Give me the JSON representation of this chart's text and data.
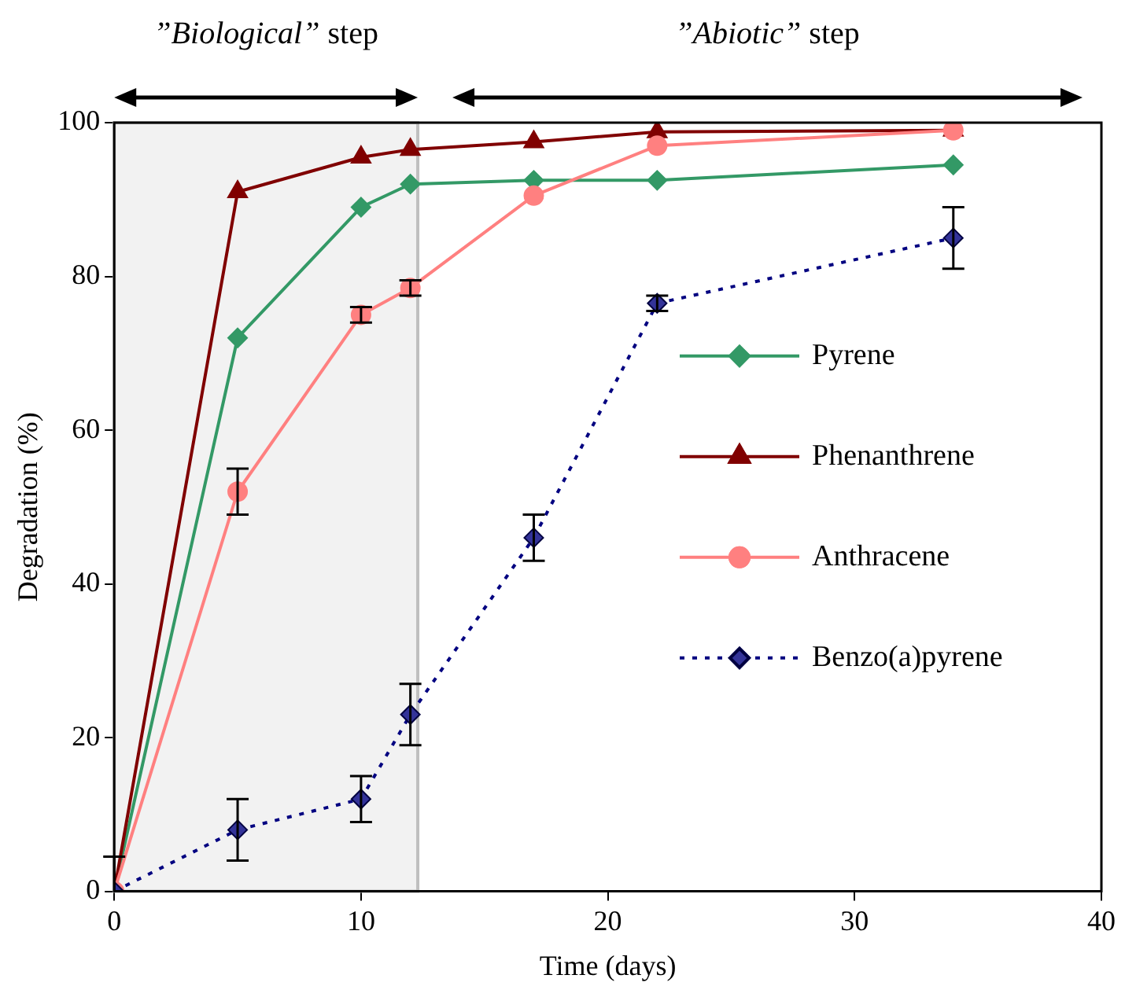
{
  "chart_data": {
    "type": "line",
    "xlabel": "Time (days)",
    "ylabel": "Degradation (%)",
    "x": [
      0,
      5,
      10,
      12,
      17,
      22,
      34
    ],
    "series": [
      {
        "name": "Pyrene",
        "color": "#339966",
        "marker": "diamond",
        "values": [
          0,
          72,
          89,
          92,
          92.5,
          92.5,
          94.5
        ]
      },
      {
        "name": "Phenanthrene",
        "color": "#800000",
        "marker": "triangle",
        "values": [
          0,
          91,
          95.5,
          96.5,
          97.5,
          98.8,
          99
        ]
      },
      {
        "name": "Anthracene",
        "color": "#ff8080",
        "marker": "circle",
        "values": [
          0,
          52,
          75,
          78.5,
          90.5,
          97,
          99
        ],
        "errors": [
          null,
          3,
          1,
          1,
          null,
          null,
          null
        ]
      },
      {
        "name": "Benzo(a)pyrene",
        "color": "#000080",
        "marker": "diamond",
        "line_style": "dotted",
        "values": [
          0,
          8,
          12,
          23,
          46,
          76.5,
          85
        ],
        "errors": [
          [
            0,
            4.5
          ],
          4,
          3,
          4,
          3,
          1,
          4
        ]
      }
    ],
    "bands": [
      {
        "axis": "x",
        "from": 0,
        "to": 12.3,
        "label": "”Biological” step",
        "color": "#f2f2f2"
      }
    ],
    "annotations": [
      "”Abiotic” step"
    ],
    "xlim": [
      0,
      40
    ],
    "xticks": [
      0,
      10,
      20,
      30,
      40
    ],
    "ylim": [
      0,
      100
    ],
    "yticks": [
      0,
      20,
      40,
      60,
      80,
      100
    ],
    "grid": false,
    "legend": "right"
  }
}
